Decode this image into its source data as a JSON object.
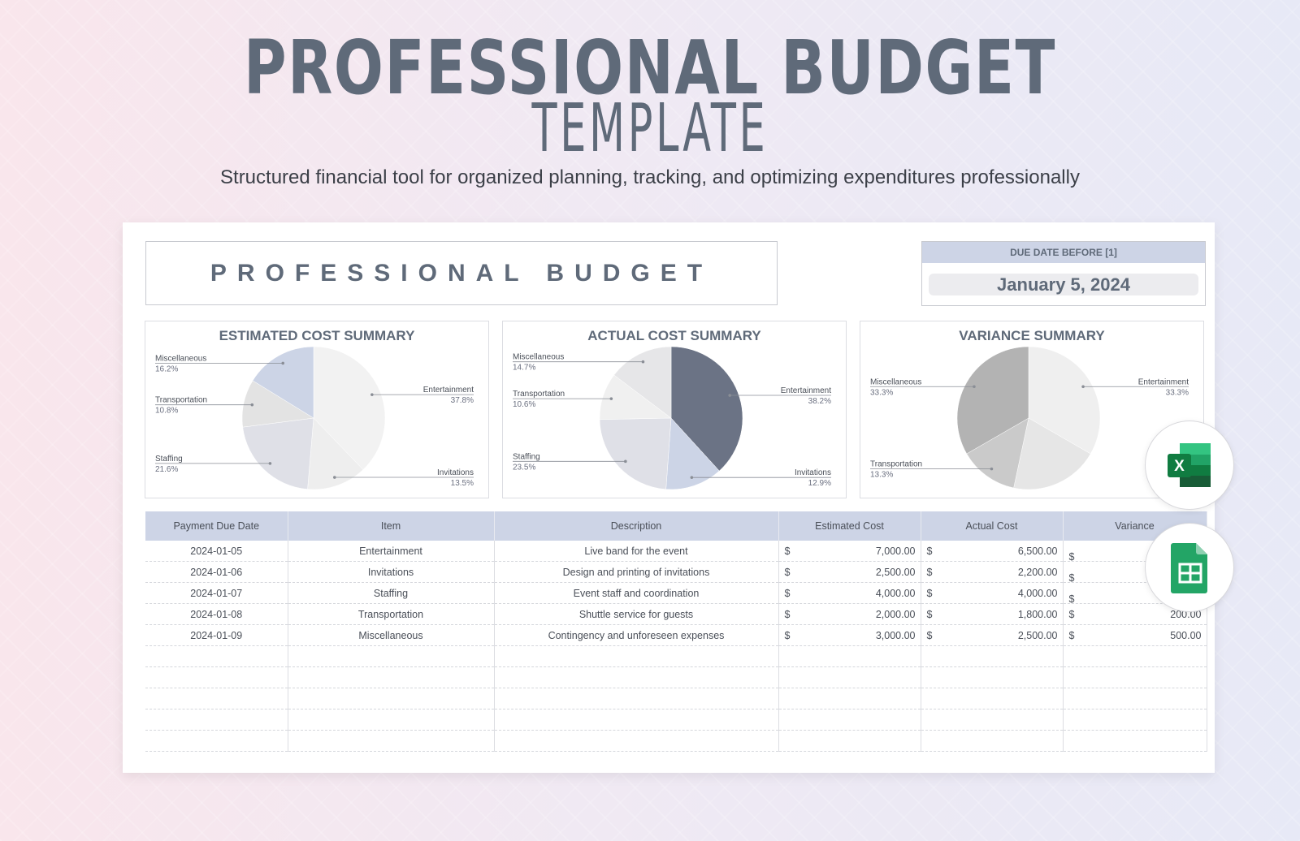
{
  "hero": {
    "title_line1": "PROFESSIONAL BUDGET",
    "title_line2": "TEMPLATE",
    "subtitle": "Structured financial tool for organized planning, tracking, and optimizing expenditures professionally"
  },
  "sheet": {
    "title": "PROFESSIONAL BUDGET",
    "due_label": "DUE DATE BEFORE [1]",
    "due_date": "January 5, 2024"
  },
  "chart_data": [
    {
      "type": "pie",
      "title": "ESTIMATED COST SUMMARY",
      "slices": [
        {
          "label": "Entertainment",
          "pct": "37.8%",
          "value": 37.8,
          "color": "#f2f2f2"
        },
        {
          "label": "Invitations",
          "pct": "13.5%",
          "value": 13.5,
          "color": "#eeeeee"
        },
        {
          "label": "Staffing",
          "pct": "21.6%",
          "value": 21.6,
          "color": "#dfe0e7"
        },
        {
          "label": "Transportation",
          "pct": "10.8%",
          "value": 10.8,
          "color": "#e3e3e3"
        },
        {
          "label": "Miscellaneous",
          "pct": "16.2%",
          "value": 16.2,
          "color": "#ccd4e6"
        }
      ]
    },
    {
      "type": "pie",
      "title": "ACTUAL COST SUMMARY",
      "slices": [
        {
          "label": "Entertainment",
          "pct": "38.2%",
          "value": 38.2,
          "color": "#6b7385"
        },
        {
          "label": "Invitations",
          "pct": "12.9%",
          "value": 12.9,
          "color": "#ccd4e6"
        },
        {
          "label": "Staffing",
          "pct": "23.5%",
          "value": 23.5,
          "color": "#dfe0e7"
        },
        {
          "label": "Transportation",
          "pct": "10.6%",
          "value": 10.6,
          "color": "#f0f0f0"
        },
        {
          "label": "Miscellaneous",
          "pct": "14.7%",
          "value": 14.7,
          "color": "#e6e6e8"
        }
      ]
    },
    {
      "type": "pie",
      "title": "VARIANCE SUMMARY",
      "slices": [
        {
          "label": "Entertainment",
          "pct": "33.3%",
          "value": 33.3,
          "color": "#efefef"
        },
        {
          "label": "",
          "pct": "",
          "value": 20.0,
          "color": "#e6e6e6"
        },
        {
          "label": "Transportation",
          "pct": "13.3%",
          "value": 13.3,
          "color": "#cacaca"
        },
        {
          "label": "Miscellaneous",
          "pct": "33.3%",
          "value": 33.3,
          "color": "#b3b3b3"
        }
      ]
    }
  ],
  "table": {
    "headers": [
      "Payment Due Date",
      "Item",
      "Description",
      "Estimated Cost",
      "Actual Cost",
      "Variance"
    ],
    "currency": "$",
    "rows": [
      {
        "date": "2024-01-05",
        "item": "Entertainment",
        "desc": "Live band for the event",
        "est": "7,000.00",
        "act": "6,500.00",
        "var": ""
      },
      {
        "date": "2024-01-06",
        "item": "Invitations",
        "desc": "Design and printing of invitations",
        "est": "2,500.00",
        "act": "2,200.00",
        "var": ""
      },
      {
        "date": "2024-01-07",
        "item": "Staffing",
        "desc": "Event staff and coordination",
        "est": "4,000.00",
        "act": "4,000.00",
        "var": ""
      },
      {
        "date": "2024-01-08",
        "item": "Transportation",
        "desc": "Shuttle service for guests",
        "est": "2,000.00",
        "act": "1,800.00",
        "var": "200.00"
      },
      {
        "date": "2024-01-09",
        "item": "Miscellaneous",
        "desc": "Contingency and unforeseen expenses",
        "est": "3,000.00",
        "act": "2,500.00",
        "var": "500.00"
      }
    ],
    "empty_rows": 5
  },
  "badges": {
    "excel_icon": "excel-icon",
    "excel_letter": "X",
    "sheets_icon": "google-sheets-icon"
  }
}
